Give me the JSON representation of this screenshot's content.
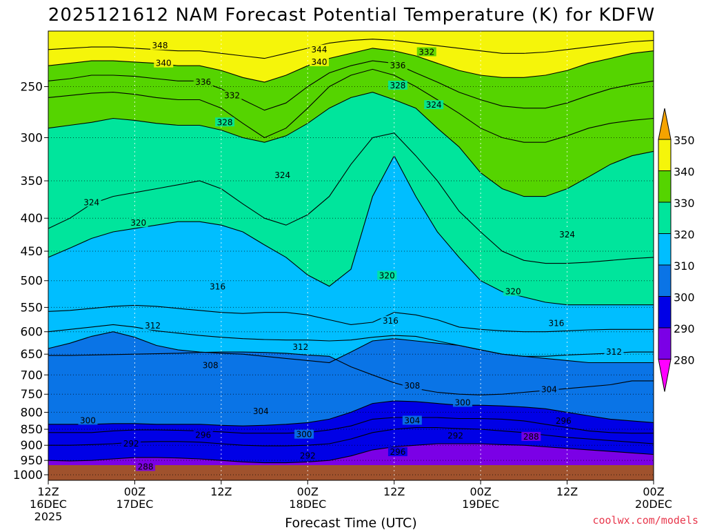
{
  "chart_data": {
    "type": "heatmap",
    "title": "2025121612 NAM Forecast Potential Temperature (K) for KDFW",
    "xlabel": "Forecast Time (UTC)",
    "ylabel": "",
    "credit": "coolwx.com/models",
    "y_axis": {
      "scale": "log-pressure",
      "range": [
        1020,
        205
      ],
      "ticks": [
        "250",
        "300",
        "350",
        "400",
        "450",
        "500",
        "550",
        "600",
        "650",
        "700",
        "750",
        "800",
        "850",
        "900",
        "950",
        "1000"
      ]
    },
    "x_axis": {
      "range_hours": [
        0,
        84
      ],
      "ticks": [
        {
          "l1": "12Z",
          "l2": "16DEC",
          "l3": "2025"
        },
        {
          "l1": "00Z",
          "l2": "17DEC",
          "l3": ""
        },
        {
          "l1": "12Z",
          "l2": "",
          "l3": ""
        },
        {
          "l1": "00Z",
          "l2": "18DEC",
          "l3": ""
        },
        {
          "l1": "12Z",
          "l2": "",
          "l3": ""
        },
        {
          "l1": "00Z",
          "l2": "19DEC",
          "l3": ""
        },
        {
          "l1": "12Z",
          "l2": "",
          "l3": ""
        },
        {
          "l1": "00Z",
          "l2": "20DEC",
          "l3": ""
        }
      ]
    },
    "grid": true,
    "colorbar": {
      "label_values": [
        "350",
        "340",
        "330",
        "320",
        "310",
        "300",
        "290",
        "280"
      ],
      "colors": [
        "#f5a300",
        "#f5f50a",
        "#55d400",
        "#00e59c",
        "#00beff",
        "#0a74e6",
        "#0000e6",
        "#7b00e6",
        "#ff00ff"
      ]
    },
    "series": [
      {
        "pressure": 650,
        "theta": 304,
        "values": [
          653,
          653,
          652,
          651,
          650,
          649,
          648,
          646,
          645,
          645,
          646,
          648,
          652,
          655,
          680,
          700,
          720,
          735,
          745,
          750,
          752,
          750,
          745,
          740,
          735,
          730,
          725,
          715,
          715
        ]
      },
      {
        "pressure": 700,
        "theta": 308,
        "values": [
          637,
          625,
          610,
          600,
          612,
          630,
          640,
          645,
          648,
          650,
          655,
          660,
          665,
          670,
          645,
          620,
          615,
          620,
          625,
          630,
          640,
          650,
          655,
          660,
          665,
          670,
          670,
          670,
          670
        ]
      },
      {
        "pressure": 600,
        "theta": 312,
        "values": [
          600,
          595,
          590,
          585,
          590,
          598,
          603,
          608,
          612,
          615,
          617,
          618,
          618,
          620,
          618,
          612,
          608,
          610,
          620,
          630,
          640,
          650,
          655,
          655,
          652,
          650,
          648,
          645,
          645
        ]
      },
      {
        "pressure": 550,
        "theta": 316,
        "values": [
          558,
          556,
          552,
          548,
          546,
          548,
          552,
          556,
          560,
          562,
          560,
          560,
          565,
          575,
          585,
          580,
          560,
          565,
          575,
          590,
          595,
          598,
          600,
          600,
          598,
          596,
          595,
          595,
          595
        ]
      },
      {
        "pressure": 420,
        "theta": 320,
        "values": [
          460,
          445,
          430,
          420,
          415,
          410,
          405,
          405,
          410,
          420,
          440,
          460,
          490,
          510,
          480,
          370,
          320,
          370,
          420,
          460,
          500,
          520,
          530,
          540,
          545,
          545,
          545,
          545,
          545
        ]
      },
      {
        "pressure": 380,
        "theta": 324,
        "values": [
          415,
          400,
          380,
          370,
          365,
          360,
          355,
          350,
          360,
          380,
          400,
          410,
          395,
          370,
          330,
          300,
          295,
          320,
          350,
          390,
          420,
          450,
          465,
          470,
          470,
          468,
          465,
          462,
          460
        ]
      },
      {
        "pressure": 290,
        "theta": 328,
        "values": [
          290,
          287,
          284,
          280,
          282,
          285,
          287,
          287,
          292,
          300,
          305,
          298,
          285,
          270,
          260,
          255,
          262,
          270,
          290,
          310,
          340,
          360,
          370,
          370,
          360,
          345,
          330,
          320,
          315
        ]
      },
      {
        "pressure": 245,
        "theta": 332,
        "values": [
          260,
          258,
          256,
          255,
          257,
          260,
          262,
          262,
          270,
          285,
          300,
          290,
          270,
          250,
          240,
          235,
          240,
          250,
          262,
          275,
          290,
          300,
          305,
          305,
          298,
          290,
          285,
          282,
          280
        ]
      },
      {
        "pressure": 228,
        "theta": 336,
        "values": [
          245,
          243,
          240,
          240,
          241,
          243,
          245,
          245,
          252,
          262,
          272,
          265,
          250,
          238,
          232,
          228,
          230,
          238,
          246,
          255,
          262,
          268,
          270,
          270,
          265,
          258,
          252,
          248,
          245
        ]
      },
      {
        "pressure": 222,
        "theta": 340,
        "values": [
          232,
          230,
          228,
          228,
          229,
          230,
          232,
          232,
          236,
          242,
          246,
          240,
          232,
          226,
          222,
          218,
          220,
          224,
          230,
          236,
          240,
          242,
          242,
          240,
          236,
          230,
          226,
          222,
          220
        ]
      },
      {
        "pressure": 214,
        "theta": 344,
        "values": [
          219,
          218,
          217,
          217,
          218,
          219,
          220,
          220,
          222,
          224,
          226,
          222,
          218,
          214,
          212,
          211,
          212,
          214,
          216,
          218,
          220,
          222,
          222,
          221,
          219,
          217,
          215,
          213,
          212
        ]
      },
      {
        "pressure": 800,
        "theta": 300,
        "values": [
          835,
          835,
          835,
          833,
          833,
          835,
          835,
          835,
          838,
          840,
          838,
          835,
          830,
          820,
          800,
          775,
          768,
          770,
          775,
          780,
          780,
          782,
          785,
          790,
          800,
          810,
          820,
          825,
          830
        ]
      },
      {
        "pressure": 860,
        "theta": 296,
        "values": [
          860,
          860,
          860,
          855,
          852,
          852,
          853,
          855,
          858,
          862,
          862,
          862,
          860,
          852,
          840,
          820,
          815,
          815,
          815,
          818,
          818,
          820,
          825,
          835,
          845,
          855,
          860,
          862,
          862
        ]
      },
      {
        "pressure": 900,
        "theta": 292,
        "values": [
          900,
          900,
          898,
          895,
          890,
          888,
          888,
          890,
          895,
          900,
          902,
          902,
          900,
          895,
          880,
          860,
          850,
          845,
          845,
          848,
          850,
          855,
          860,
          868,
          875,
          880,
          885,
          890,
          895
        ]
      },
      {
        "pressure": 950,
        "theta": 288,
        "values": [
          950,
          952,
          950,
          945,
          940,
          940,
          942,
          945,
          950,
          955,
          958,
          958,
          955,
          950,
          935,
          915,
          905,
          900,
          895,
          895,
          895,
          898,
          900,
          905,
          910,
          915,
          920,
          925,
          930
        ]
      }
    ],
    "contour_labels": [
      {
        "text": "348",
        "h": 15.5,
        "p": 216
      },
      {
        "text": "344",
        "h": 37.6,
        "p": 219
      },
      {
        "text": "340",
        "h": 16.0,
        "p": 230
      },
      {
        "text": "340",
        "h": 37.6,
        "p": 229
      },
      {
        "text": "336",
        "h": 48.5,
        "p": 232
      },
      {
        "text": "332",
        "h": 52.5,
        "p": 221
      },
      {
        "text": "336",
        "h": 21.5,
        "p": 246
      },
      {
        "text": "332",
        "h": 25.5,
        "p": 258
      },
      {
        "text": "328",
        "h": 48.5,
        "p": 249
      },
      {
        "text": "324",
        "h": 53.5,
        "p": 267
      },
      {
        "text": "328",
        "h": 24.5,
        "p": 284
      },
      {
        "text": "324",
        "h": 32.5,
        "p": 343
      },
      {
        "text": "324",
        "h": 6.0,
        "p": 378
      },
      {
        "text": "320",
        "h": 12.5,
        "p": 407
      },
      {
        "text": "324",
        "h": 72.0,
        "p": 424
      },
      {
        "text": "320",
        "h": 47.0,
        "p": 491
      },
      {
        "text": "320",
        "h": 64.5,
        "p": 520
      },
      {
        "text": "316",
        "h": 23.5,
        "p": 511
      },
      {
        "text": "316",
        "h": 47.5,
        "p": 577
      },
      {
        "text": "316",
        "h": 70.5,
        "p": 582
      },
      {
        "text": "312",
        "h": 14.5,
        "p": 587
      },
      {
        "text": "312",
        "h": 35.0,
        "p": 634
      },
      {
        "text": "312",
        "h": 78.5,
        "p": 645
      },
      {
        "text": "308",
        "h": 22.5,
        "p": 677
      },
      {
        "text": "308",
        "h": 50.5,
        "p": 728
      },
      {
        "text": "304",
        "h": 69.5,
        "p": 738
      },
      {
        "text": "300",
        "h": 57.5,
        "p": 773
      },
      {
        "text": "304",
        "h": 29.5,
        "p": 797
      },
      {
        "text": "304",
        "h": 50.5,
        "p": 824
      },
      {
        "text": "300",
        "h": 5.5,
        "p": 824
      },
      {
        "text": "296",
        "h": 71.5,
        "p": 825
      },
      {
        "text": "296",
        "h": 21.5,
        "p": 868
      },
      {
        "text": "300",
        "h": 35.5,
        "p": 866
      },
      {
        "text": "292",
        "h": 56.5,
        "p": 870
      },
      {
        "text": "288",
        "h": 67.0,
        "p": 873
      },
      {
        "text": "292",
        "h": 11.5,
        "p": 895
      },
      {
        "text": "296",
        "h": 48.5,
        "p": 922
      },
      {
        "text": "292",
        "h": 36.0,
        "p": 935
      },
      {
        "text": "288",
        "h": 13.5,
        "p": 972
      }
    ]
  }
}
